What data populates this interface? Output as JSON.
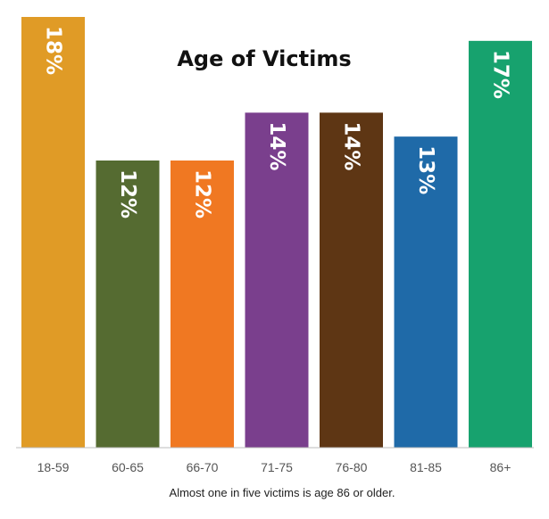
{
  "chart_data": {
    "type": "bar",
    "title": "Age of Victims",
    "caption": "Almost one in five victims is age 86 or older.",
    "categories": [
      "18-59",
      "60-65",
      "66-70",
      "71-75",
      "76-80",
      "81-85",
      "86+"
    ],
    "values": [
      18,
      12,
      12,
      14,
      14,
      13,
      17
    ],
    "data_labels": [
      "18%",
      "12%",
      "12%",
      "14%",
      "14%",
      "13%",
      "17%"
    ],
    "colors": [
      "#E09B26",
      "#556B31",
      "#F07822",
      "#7A3F8D",
      "#5E3614",
      "#1F6AA8",
      "#17A26E"
    ],
    "ylim": [
      0,
      18
    ],
    "xlabel": "",
    "ylabel": "",
    "grid": false,
    "legend": "none"
  }
}
